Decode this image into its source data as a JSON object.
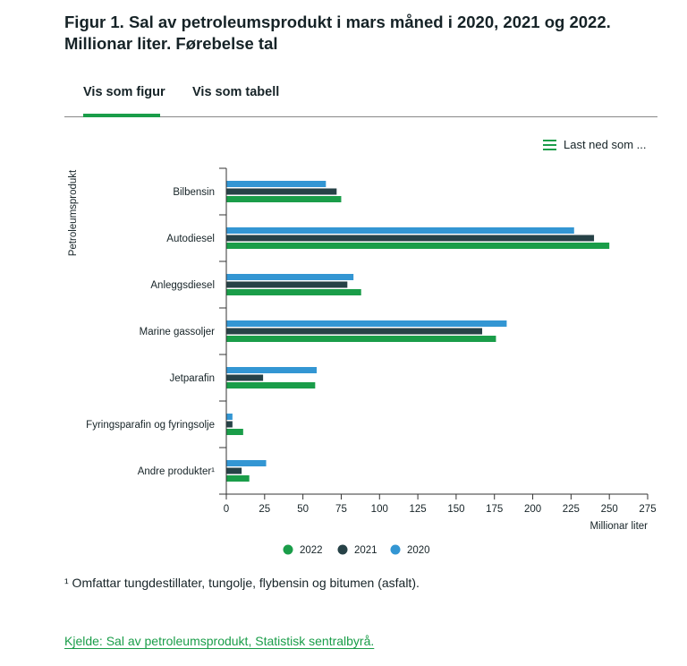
{
  "title": "Figur 1. Sal av petroleumsprodukt i mars måned i 2020, 2021 og 2022. Millionar liter. Førebelse tal",
  "tabs": [
    {
      "label": "Vis som figur",
      "active": true
    },
    {
      "label": "Vis som tabell",
      "active": false
    }
  ],
  "download_label": "Last ned som ...",
  "footnote": "¹ Omfattar tungdestillater, tungolje, flybensin og bitumen (asfalt).",
  "source": "Kjelde: Sal av petroleumsprodukt, Statistisk sentralbyrå.",
  "chart_data": {
    "type": "bar",
    "orientation": "horizontal",
    "categories": [
      "Bilbensin",
      "Autodiesel",
      "Anleggsdiesel",
      "Marine gassoljer",
      "Jetparafin",
      "Fyringsparafin og fyringsolje",
      "Andre produkter¹"
    ],
    "series": [
      {
        "name": "2020",
        "color": "#3396d3",
        "values": [
          65,
          227,
          83,
          183,
          59,
          4,
          26
        ]
      },
      {
        "name": "2021",
        "color": "#274247",
        "values": [
          72,
          240,
          79,
          167,
          24,
          4,
          10
        ]
      },
      {
        "name": "2022",
        "color": "#1a9d49",
        "values": [
          75,
          250,
          88,
          176,
          58,
          11,
          15
        ]
      }
    ],
    "legend_order": [
      "2022",
      "2021",
      "2020"
    ],
    "xlabel": "Millionar liter",
    "ylabel": "Petroleumsprodukt",
    "xlim": [
      0,
      275
    ],
    "xticks": [
      0,
      25,
      50,
      75,
      100,
      125,
      150,
      175,
      200,
      225,
      250,
      275
    ],
    "legend_position": "bottom",
    "grid": false
  }
}
